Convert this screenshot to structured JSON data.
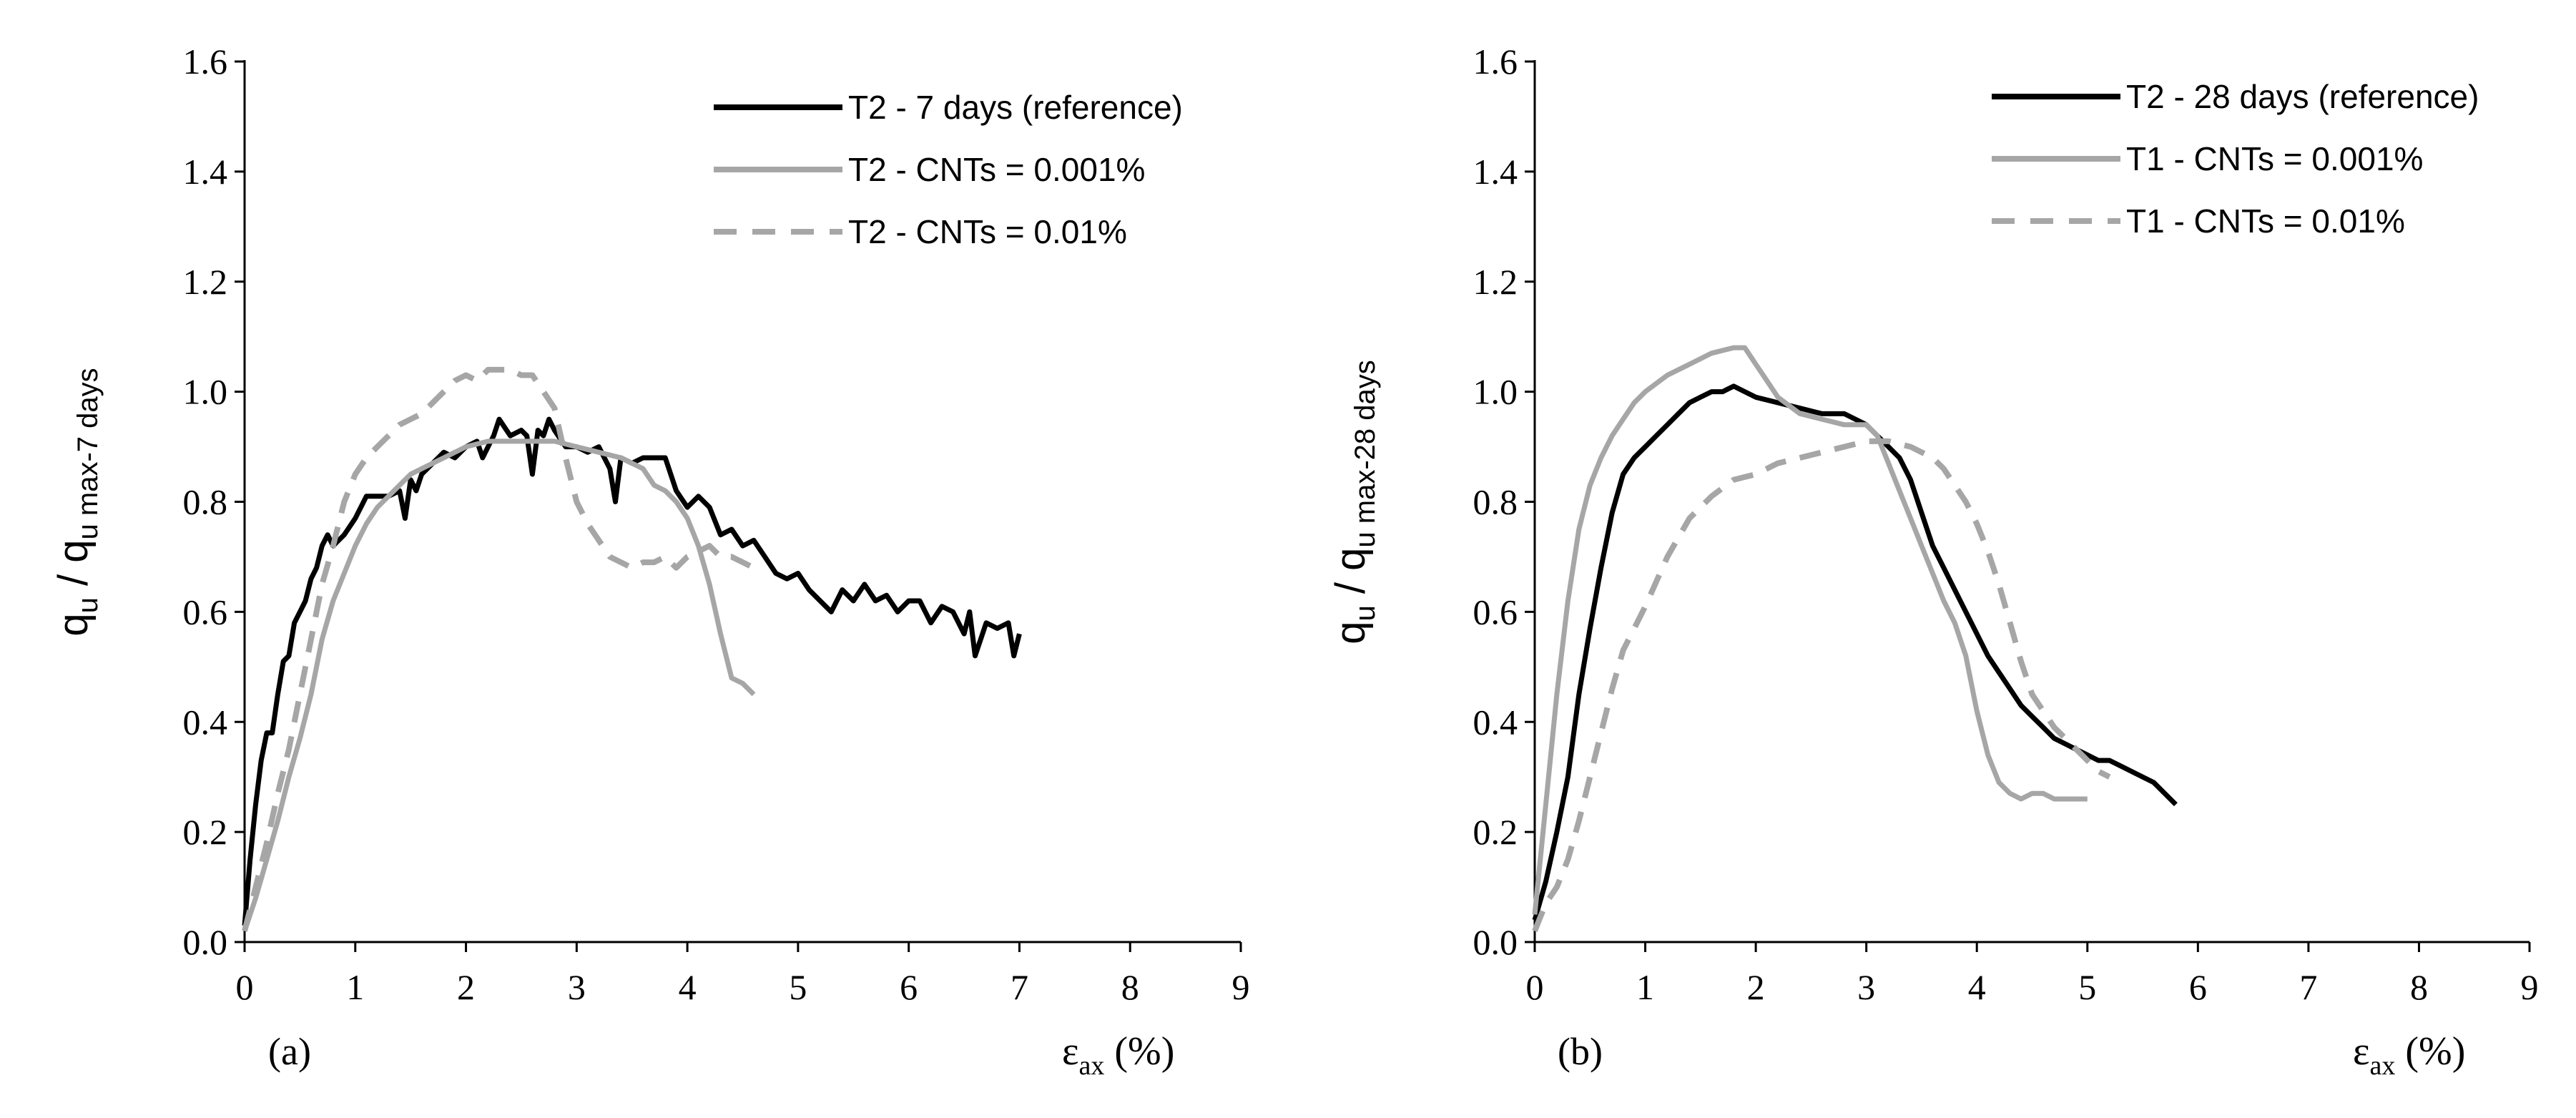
{
  "chart_data": [
    {
      "type": "line",
      "panel_label": "(a)",
      "xlabel": "ε",
      "xlabel_sub": "ax",
      "xlabel_unit": " (%)",
      "ylabel": "q",
      "ylabel_sub": "u",
      "ylabel_slash": " / q",
      "ylabel_sub2": "u max-7 days",
      "xlim": [
        0,
        9
      ],
      "ylim": [
        0,
        1.6
      ],
      "xticks": [
        0,
        1,
        2,
        3,
        4,
        5,
        6,
        7,
        8,
        9
      ],
      "yticks": [
        "0.0",
        "0.2",
        "0.4",
        "0.6",
        "0.8",
        "1.0",
        "1.2",
        "1.4",
        "1.6"
      ],
      "legend_position": "top-right",
      "series": [
        {
          "name": "T2 - 7 days (reference)",
          "color": "#000000",
          "style": "solid",
          "x": [
            0,
            0.05,
            0.1,
            0.15,
            0.2,
            0.25,
            0.3,
            0.35,
            0.4,
            0.45,
            0.5,
            0.55,
            0.6,
            0.65,
            0.7,
            0.75,
            0.8,
            0.9,
            1.0,
            1.1,
            1.2,
            1.3,
            1.4,
            1.45,
            1.5,
            1.55,
            1.6,
            1.7,
            1.8,
            1.9,
            2.0,
            2.1,
            2.15,
            2.2,
            2.25,
            2.3,
            2.4,
            2.5,
            2.55,
            2.6,
            2.65,
            2.7,
            2.75,
            2.8,
            2.9,
            3.0,
            3.1,
            3.2,
            3.3,
            3.35,
            3.4,
            3.5,
            3.6,
            3.7,
            3.8,
            3.9,
            4.0,
            4.1,
            4.2,
            4.3,
            4.4,
            4.5,
            4.6,
            4.7,
            4.8,
            4.9,
            5.0,
            5.1,
            5.2,
            5.3,
            5.4,
            5.5,
            5.6,
            5.7,
            5.8,
            5.9,
            6.0,
            6.1,
            6.2,
            6.3,
            6.4,
            6.5,
            6.55,
            6.6,
            6.7,
            6.8,
            6.9,
            6.95,
            7.0
          ],
          "y": [
            0.03,
            0.15,
            0.25,
            0.33,
            0.38,
            0.38,
            0.45,
            0.51,
            0.52,
            0.58,
            0.6,
            0.62,
            0.66,
            0.68,
            0.72,
            0.74,
            0.72,
            0.74,
            0.77,
            0.81,
            0.81,
            0.81,
            0.82,
            0.77,
            0.84,
            0.82,
            0.85,
            0.87,
            0.89,
            0.88,
            0.9,
            0.91,
            0.88,
            0.9,
            0.92,
            0.95,
            0.92,
            0.93,
            0.92,
            0.85,
            0.93,
            0.92,
            0.95,
            0.93,
            0.9,
            0.9,
            0.89,
            0.9,
            0.86,
            0.8,
            0.88,
            0.87,
            0.88,
            0.88,
            0.88,
            0.82,
            0.79,
            0.81,
            0.79,
            0.74,
            0.75,
            0.72,
            0.73,
            0.7,
            0.67,
            0.66,
            0.67,
            0.64,
            0.62,
            0.6,
            0.64,
            0.62,
            0.65,
            0.62,
            0.63,
            0.6,
            0.62,
            0.62,
            0.58,
            0.61,
            0.6,
            0.56,
            0.6,
            0.52,
            0.58,
            0.57,
            0.58,
            0.52,
            0.56
          ]
        },
        {
          "name": "T2 - CNTs = 0.001%",
          "color": "#a6a6a6",
          "style": "solid",
          "x": [
            0,
            0.1,
            0.2,
            0.3,
            0.4,
            0.5,
            0.6,
            0.7,
            0.8,
            0.9,
            1.0,
            1.1,
            1.2,
            1.3,
            1.4,
            1.5,
            1.6,
            1.7,
            1.8,
            1.9,
            2.0,
            2.2,
            2.4,
            2.6,
            2.8,
            3.0,
            3.2,
            3.4,
            3.6,
            3.7,
            3.8,
            3.9,
            4.0,
            4.1,
            4.2,
            4.3,
            4.4,
            4.5,
            4.6
          ],
          "y": [
            0.02,
            0.08,
            0.15,
            0.22,
            0.3,
            0.37,
            0.45,
            0.55,
            0.62,
            0.67,
            0.72,
            0.76,
            0.79,
            0.81,
            0.83,
            0.85,
            0.86,
            0.87,
            0.88,
            0.89,
            0.9,
            0.91,
            0.91,
            0.91,
            0.91,
            0.9,
            0.89,
            0.88,
            0.86,
            0.83,
            0.82,
            0.8,
            0.77,
            0.72,
            0.65,
            0.56,
            0.48,
            0.47,
            0.45
          ]
        },
        {
          "name": "T2 - CNTs = 0.01%",
          "color": "#a6a6a6",
          "style": "dashed",
          "x": [
            0,
            0.1,
            0.2,
            0.3,
            0.4,
            0.5,
            0.6,
            0.7,
            0.8,
            0.9,
            1.0,
            1.1,
            1.2,
            1.3,
            1.4,
            1.5,
            1.6,
            1.7,
            1.8,
            1.9,
            2.0,
            2.1,
            2.2,
            2.3,
            2.4,
            2.5,
            2.6,
            2.7,
            2.8,
            2.9,
            3.0,
            3.1,
            3.2,
            3.3,
            3.4,
            3.5,
            3.6,
            3.7,
            3.8,
            3.9,
            4.0,
            4.1,
            4.2,
            4.3,
            4.4,
            4.5,
            4.6
          ],
          "y": [
            0.02,
            0.1,
            0.18,
            0.27,
            0.35,
            0.45,
            0.55,
            0.65,
            0.72,
            0.8,
            0.85,
            0.88,
            0.9,
            0.92,
            0.94,
            0.95,
            0.96,
            0.98,
            1.0,
            1.02,
            1.03,
            1.02,
            1.04,
            1.04,
            1.04,
            1.03,
            1.03,
            1.0,
            0.97,
            0.88,
            0.8,
            0.76,
            0.73,
            0.7,
            0.69,
            0.68,
            0.69,
            0.69,
            0.7,
            0.68,
            0.7,
            0.71,
            0.72,
            0.7,
            0.7,
            0.69,
            0.68
          ]
        }
      ]
    },
    {
      "type": "line",
      "panel_label": "(b)",
      "xlabel": "ε",
      "xlabel_sub": "ax",
      "xlabel_unit": " (%)",
      "ylabel": "q",
      "ylabel_sub": "u",
      "ylabel_slash": " / q",
      "ylabel_sub2": "u max-28 days",
      "xlim": [
        0,
        9
      ],
      "ylim": [
        0,
        1.6
      ],
      "xticks": [
        0,
        1,
        2,
        3,
        4,
        5,
        6,
        7,
        8,
        9
      ],
      "yticks": [
        "0.0",
        "0.2",
        "0.4",
        "0.6",
        "0.8",
        "1.0",
        "1.2",
        "1.4",
        "1.6"
      ],
      "legend_position": "top-right",
      "series": [
        {
          "name": "T2 - 28 days (reference)",
          "color": "#000000",
          "style": "solid",
          "x": [
            0,
            0.1,
            0.2,
            0.3,
            0.4,
            0.5,
            0.6,
            0.7,
            0.8,
            0.9,
            1.0,
            1.1,
            1.2,
            1.3,
            1.4,
            1.5,
            1.6,
            1.7,
            1.8,
            1.9,
            2.0,
            2.2,
            2.4,
            2.6,
            2.8,
            3.0,
            3.1,
            3.2,
            3.3,
            3.4,
            3.5,
            3.6,
            3.7,
            3.8,
            3.9,
            4.0,
            4.1,
            4.2,
            4.3,
            4.4,
            4.5,
            4.6,
            4.7,
            4.8,
            4.9,
            5.0,
            5.1,
            5.2,
            5.3,
            5.4,
            5.5,
            5.6,
            5.7,
            5.8
          ],
          "y": [
            0.04,
            0.11,
            0.2,
            0.3,
            0.45,
            0.57,
            0.68,
            0.78,
            0.85,
            0.88,
            0.9,
            0.92,
            0.94,
            0.96,
            0.98,
            0.99,
            1.0,
            1.0,
            1.01,
            1.0,
            0.99,
            0.98,
            0.97,
            0.96,
            0.96,
            0.94,
            0.92,
            0.9,
            0.88,
            0.84,
            0.78,
            0.72,
            0.68,
            0.64,
            0.6,
            0.56,
            0.52,
            0.49,
            0.46,
            0.43,
            0.41,
            0.39,
            0.37,
            0.36,
            0.35,
            0.34,
            0.33,
            0.33,
            0.32,
            0.31,
            0.3,
            0.29,
            0.27,
            0.25
          ]
        },
        {
          "name": "T1 - CNTs = 0.001%",
          "color": "#a6a6a6",
          "style": "solid",
          "x": [
            0,
            0.1,
            0.2,
            0.3,
            0.4,
            0.5,
            0.6,
            0.7,
            0.8,
            0.9,
            1.0,
            1.2,
            1.4,
            1.6,
            1.8,
            1.9,
            2.0,
            2.1,
            2.2,
            2.4,
            2.6,
            2.8,
            3.0,
            3.1,
            3.2,
            3.3,
            3.4,
            3.5,
            3.6,
            3.7,
            3.8,
            3.9,
            4.0,
            4.1,
            4.2,
            4.3,
            4.4,
            4.5,
            4.6,
            4.7,
            4.8,
            4.9,
            5.0
          ],
          "y": [
            0.05,
            0.25,
            0.45,
            0.62,
            0.75,
            0.83,
            0.88,
            0.92,
            0.95,
            0.98,
            1.0,
            1.03,
            1.05,
            1.07,
            1.08,
            1.08,
            1.05,
            1.02,
            0.99,
            0.96,
            0.95,
            0.94,
            0.94,
            0.92,
            0.87,
            0.82,
            0.77,
            0.72,
            0.67,
            0.62,
            0.58,
            0.52,
            0.42,
            0.34,
            0.29,
            0.27,
            0.26,
            0.27,
            0.27,
            0.26,
            0.26,
            0.26,
            0.26
          ]
        },
        {
          "name": "T1 - CNTs = 0.01%",
          "color": "#a6a6a6",
          "style": "dashed",
          "x": [
            0,
            0.1,
            0.2,
            0.3,
            0.4,
            0.5,
            0.6,
            0.7,
            0.8,
            0.9,
            1.0,
            1.2,
            1.4,
            1.6,
            1.8,
            2.0,
            2.2,
            2.4,
            2.6,
            2.8,
            3.0,
            3.2,
            3.4,
            3.6,
            3.7,
            3.8,
            3.9,
            4.0,
            4.1,
            4.2,
            4.3,
            4.4,
            4.5,
            4.6,
            4.7,
            4.8,
            4.9,
            5.0,
            5.1,
            5.2
          ],
          "y": [
            0.02,
            0.07,
            0.1,
            0.15,
            0.22,
            0.3,
            0.38,
            0.46,
            0.53,
            0.57,
            0.61,
            0.7,
            0.77,
            0.81,
            0.84,
            0.85,
            0.87,
            0.88,
            0.89,
            0.9,
            0.91,
            0.91,
            0.9,
            0.88,
            0.86,
            0.83,
            0.8,
            0.76,
            0.71,
            0.65,
            0.58,
            0.51,
            0.45,
            0.42,
            0.39,
            0.37,
            0.35,
            0.33,
            0.31,
            0.3
          ]
        }
      ]
    }
  ]
}
